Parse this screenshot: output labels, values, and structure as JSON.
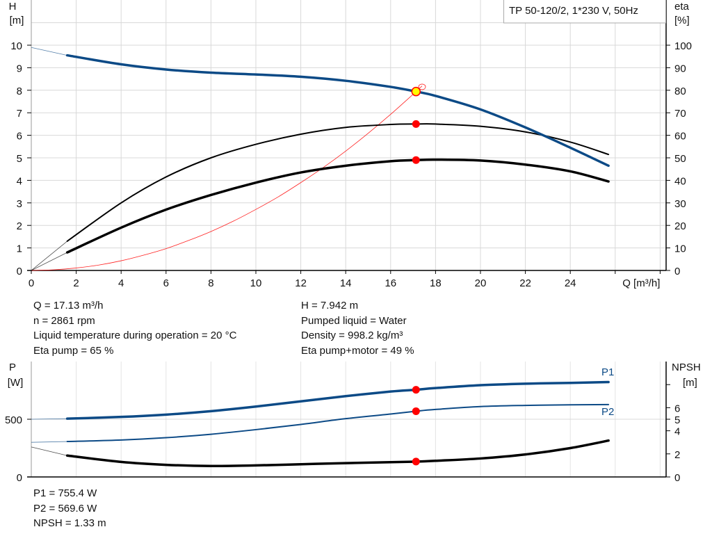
{
  "title_box": "TP 50-120/2, 1*230 V, 50Hz",
  "colors": {
    "head": "#0c4a86",
    "power": "#0c4a86",
    "eta": "#000000",
    "npsh": "#000000",
    "system": "#ff2020",
    "marker": "#ff0000",
    "marker_duty": "#ffff00",
    "grid": "#d8d8d8"
  },
  "chart_data": [
    {
      "type": "line",
      "x_label": "Q [m³/h]",
      "xlim": [
        0,
        28
      ],
      "x_ticks": [
        0,
        2,
        4,
        6,
        8,
        10,
        12,
        14,
        16,
        18,
        20,
        22,
        24
      ],
      "y_left": {
        "label_line1": "H",
        "label_line2": "[m]",
        "ylim": [
          0,
          11
        ],
        "ticks": [
          0,
          1,
          2,
          3,
          4,
          5,
          6,
          7,
          8,
          9,
          10
        ]
      },
      "y_right": {
        "label_line1": "eta",
        "label_line2": "[%]",
        "ylim": [
          0,
          110
        ],
        "ticks": [
          0,
          10,
          20,
          30,
          40,
          50,
          60,
          70,
          80,
          90,
          100
        ]
      },
      "grid": true,
      "series": [
        {
          "key": "H",
          "axis": "left",
          "x": [
            1.6,
            4,
            6,
            8,
            10,
            12,
            14,
            16,
            17.13,
            18,
            20,
            22,
            24,
            25.7
          ],
          "y": [
            9.55,
            9.15,
            8.92,
            8.78,
            8.7,
            8.6,
            8.42,
            8.15,
            7.942,
            7.75,
            7.15,
            6.35,
            5.45,
            4.65
          ],
          "extrapolated_start": [
            0,
            9.9
          ]
        },
        {
          "key": "eta_pump",
          "axis": "right",
          "x": [
            1.6,
            4,
            6,
            8,
            10,
            12,
            14,
            16,
            17.13,
            18,
            20,
            22,
            24,
            25.7
          ],
          "y": [
            13,
            30,
            41.5,
            50,
            56,
            60.5,
            63.5,
            64.8,
            65,
            65,
            64,
            61.5,
            57,
            51.5
          ],
          "extrapolated_start": [
            0,
            0
          ]
        },
        {
          "key": "eta_total",
          "axis": "right",
          "x": [
            1.6,
            4,
            6,
            8,
            10,
            12,
            14,
            16,
            17.13,
            18,
            20,
            22,
            24,
            25.7
          ],
          "y": [
            8,
            19,
            27,
            33.5,
            39,
            43.5,
            46.5,
            48.5,
            49,
            49.2,
            48.8,
            47,
            44,
            39.5
          ],
          "extrapolated_start": [
            0,
            0
          ]
        },
        {
          "key": "system_curve",
          "axis": "left",
          "x": [
            0,
            1,
            2,
            3,
            4,
            5,
            6,
            7,
            8,
            9,
            10,
            11,
            12,
            13,
            14,
            15,
            16,
            17,
            17.13,
            17.4
          ],
          "y": [
            0,
            0.03,
            0.11,
            0.24,
            0.43,
            0.68,
            0.97,
            1.33,
            1.73,
            2.19,
            2.71,
            3.27,
            3.9,
            4.57,
            5.3,
            6.09,
            6.93,
            7.82,
            7.942,
            8.19
          ]
        }
      ],
      "duty_point": {
        "Q": 17.13,
        "H": 7.942,
        "eta_pump": 65,
        "eta_total": 49
      }
    },
    {
      "type": "line",
      "xlim": [
        0,
        28
      ],
      "y_left": {
        "label_line1": "P",
        "label_line2": "[W]",
        "ylim": [
          0,
          1000
        ],
        "ticks": [
          0,
          500
        ]
      },
      "y_right": {
        "label_line1": "NPSH",
        "label_line2": "[m]",
        "ylim": [
          0,
          10
        ],
        "ticks": [
          0,
          2,
          4,
          5,
          6
        ],
        "unlabeled_ticks": [
          8
        ]
      },
      "grid": true,
      "series": [
        {
          "key": "P1",
          "name": "P1",
          "axis": "left",
          "x": [
            1.6,
            4,
            6,
            8,
            10,
            12,
            14,
            16,
            17.13,
            18,
            20,
            22,
            24,
            25.7
          ],
          "y": [
            505,
            520,
            540,
            570,
            610,
            655,
            700,
            740,
            755.4,
            770,
            795,
            808,
            815,
            822
          ],
          "extrapolated_start": [
            0,
            500
          ]
        },
        {
          "key": "P2",
          "name": "P2",
          "axis": "left",
          "x": [
            1.6,
            4,
            6,
            8,
            10,
            12,
            14,
            16,
            17.13,
            18,
            20,
            22,
            24,
            25.7
          ],
          "y": [
            307,
            320,
            340,
            370,
            410,
            455,
            505,
            545,
            569.6,
            585,
            610,
            620,
            625,
            627
          ],
          "extrapolated_start": [
            0,
            300
          ]
        },
        {
          "key": "NPSH",
          "axis": "right",
          "x": [
            1.6,
            4,
            6,
            8,
            10,
            12,
            14,
            16,
            17.13,
            18,
            20,
            22,
            24,
            25.7
          ],
          "y": [
            1.85,
            1.3,
            1.05,
            0.95,
            1.0,
            1.1,
            1.2,
            1.28,
            1.33,
            1.4,
            1.6,
            1.95,
            2.5,
            3.15
          ],
          "extrapolated_start": [
            0,
            2.6
          ]
        }
      ],
      "duty_point": {
        "Q": 17.13,
        "P1": 755.4,
        "P2": 569.6,
        "NPSH": 1.33
      }
    }
  ],
  "info_left": [
    "Q = 17.13 m³/h",
    "n = 2861 rpm",
    "Liquid temperature during operation = 20 °C",
    "Eta pump = 65 %"
  ],
  "info_right": [
    "H = 7.942 m",
    "Pumped liquid = Water",
    "Density = 998.2 kg/m³",
    "Eta pump+motor = 49 %"
  ],
  "info_bottom": [
    "P1 = 755.4 W",
    "P2 = 569.6 W",
    "NPSH = 1.33 m"
  ]
}
